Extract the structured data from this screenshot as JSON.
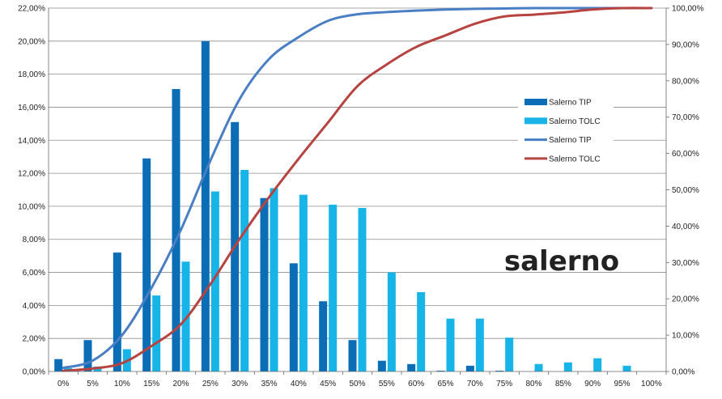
{
  "chart_data": {
    "type": "bar",
    "watermark": "salerno",
    "categories": [
      "0%",
      "5%",
      "10%",
      "15%",
      "20%",
      "25%",
      "30%",
      "35%",
      "40%",
      "45%",
      "50%",
      "55%",
      "60%",
      "65%",
      "70%",
      "75%",
      "80%",
      "85%",
      "90%",
      "95%",
      "100%"
    ],
    "y_left": {
      "ylim": [
        0,
        22
      ],
      "ticks": [
        "0,00%",
        "2,00%",
        "4,00%",
        "6,00%",
        "8,00%",
        "10,00%",
        "12,00%",
        "14,00%",
        "16,00%",
        "18,00%",
        "20,00%",
        "22,00%"
      ]
    },
    "y_right": {
      "ylim": [
        0,
        100
      ],
      "ticks": [
        "0,00%",
        "10,00%",
        "20,00%",
        "30,00%",
        "40,00%",
        "50,00%",
        "60,00%",
        "70,00%",
        "80,00%",
        "90,00%",
        "100,00%"
      ]
    },
    "grid": true,
    "legend_position": "right",
    "series": [
      {
        "name": "Salerno TIP",
        "kind": "bar",
        "axis": "left",
        "color": "#0B6DB5",
        "values": [
          0.75,
          1.9,
          7.2,
          12.9,
          17.1,
          20.0,
          15.1,
          10.5,
          6.55,
          4.25,
          1.9,
          0.65,
          0.45,
          0.05,
          0.35,
          0.05,
          0.0,
          0.0,
          0.0,
          0.0,
          0.0
        ]
      },
      {
        "name": "Salerno TOLC",
        "kind": "bar",
        "axis": "left",
        "color": "#17B4E8",
        "values": [
          0.2,
          0.3,
          1.35,
          4.6,
          6.65,
          10.9,
          12.2,
          11.1,
          10.7,
          10.1,
          9.9,
          6.0,
          4.8,
          3.2,
          3.2,
          2.05,
          0.45,
          0.55,
          0.8,
          0.35,
          0.0
        ]
      },
      {
        "name": "Salerno TIP",
        "kind": "line",
        "axis": "right",
        "color": "#4A7EC4",
        "values": [
          1.0,
          3.0,
          10.0,
          23.0,
          39.0,
          58.0,
          75.0,
          86.0,
          92.0,
          96.5,
          98.3,
          98.9,
          99.3,
          99.6,
          99.8,
          99.9,
          100.0,
          100.0,
          100.0,
          100.0,
          100.0
        ]
      },
      {
        "name": "Salerno TOLC",
        "kind": "line",
        "axis": "right",
        "color": "#B74340",
        "values": [
          0.2,
          0.8,
          2.3,
          7.0,
          13.0,
          24.0,
          36.5,
          48.0,
          58.5,
          68.5,
          78.5,
          84.5,
          89.3,
          92.5,
          95.7,
          97.7,
          98.2,
          98.8,
          99.6,
          100.0,
          100.0
        ]
      }
    ]
  }
}
